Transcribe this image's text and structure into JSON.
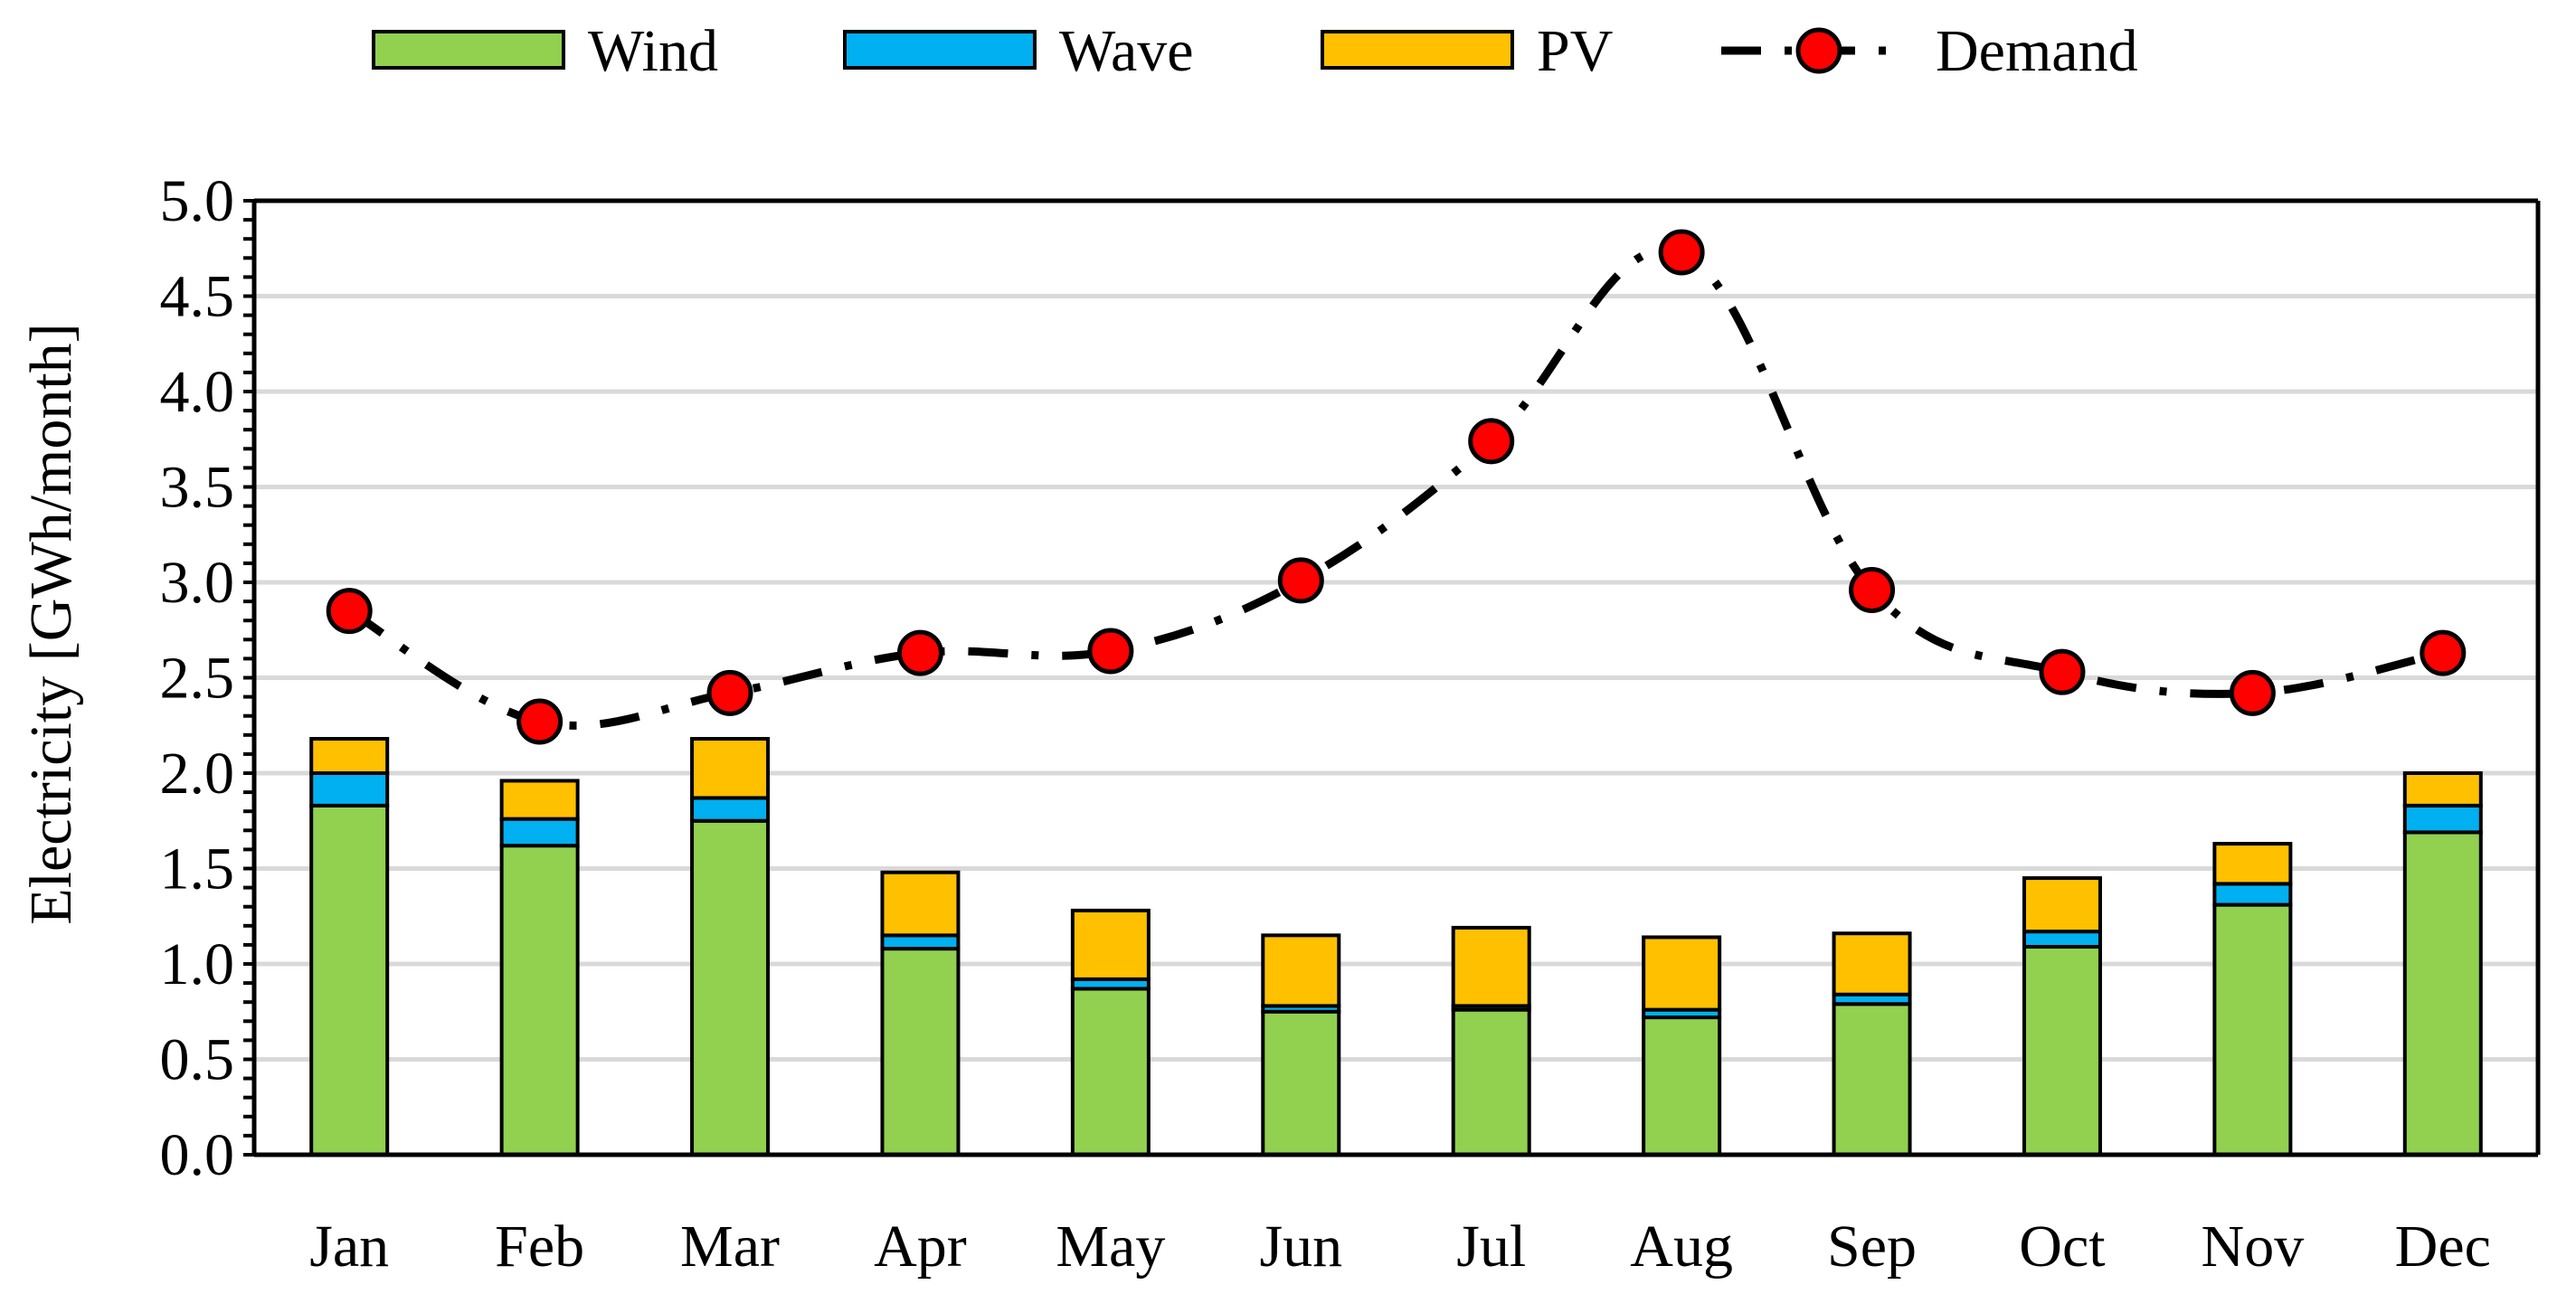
{
  "chart_data": {
    "type": "bar",
    "stacked": true,
    "title": "",
    "xlabel": "",
    "ylabel": "Electricity [GWh/month]",
    "ylim": [
      0.0,
      5.0
    ],
    "ytick_step": 0.5,
    "ytick_labels": [
      "0.0",
      "0.5",
      "1.0",
      "1.5",
      "2.0",
      "2.5",
      "3.0",
      "3.5",
      "4.0",
      "4.5",
      "5.0"
    ],
    "grid": true,
    "legend_position": "top",
    "categories": [
      "Jan",
      "Feb",
      "Mar",
      "Apr",
      "May",
      "Jun",
      "Jul",
      "Aug",
      "Sep",
      "Oct",
      "Nov",
      "Dec"
    ],
    "series": [
      {
        "name": "Wind",
        "kind": "bar",
        "color": "#92D050",
        "values": [
          1.83,
          1.62,
          1.75,
          1.08,
          0.87,
          0.75,
          0.76,
          0.72,
          0.79,
          1.09,
          1.31,
          1.69
        ]
      },
      {
        "name": "Wave",
        "kind": "bar",
        "color": "#00B0F0",
        "values": [
          0.17,
          0.14,
          0.12,
          0.07,
          0.05,
          0.03,
          0.02,
          0.04,
          0.05,
          0.08,
          0.11,
          0.14
        ]
      },
      {
        "name": "PV",
        "kind": "bar",
        "color": "#FFC000",
        "values": [
          0.18,
          0.2,
          0.31,
          0.33,
          0.36,
          0.37,
          0.41,
          0.38,
          0.32,
          0.28,
          0.21,
          0.17
        ]
      },
      {
        "name": "Demand",
        "kind": "line",
        "color": "#FF0000",
        "line_color": "#000000",
        "line_style": "dash-dot",
        "values": [
          2.85,
          2.27,
          2.42,
          2.63,
          2.64,
          3.01,
          3.74,
          4.73,
          2.96,
          2.53,
          2.42,
          2.63
        ]
      }
    ]
  }
}
